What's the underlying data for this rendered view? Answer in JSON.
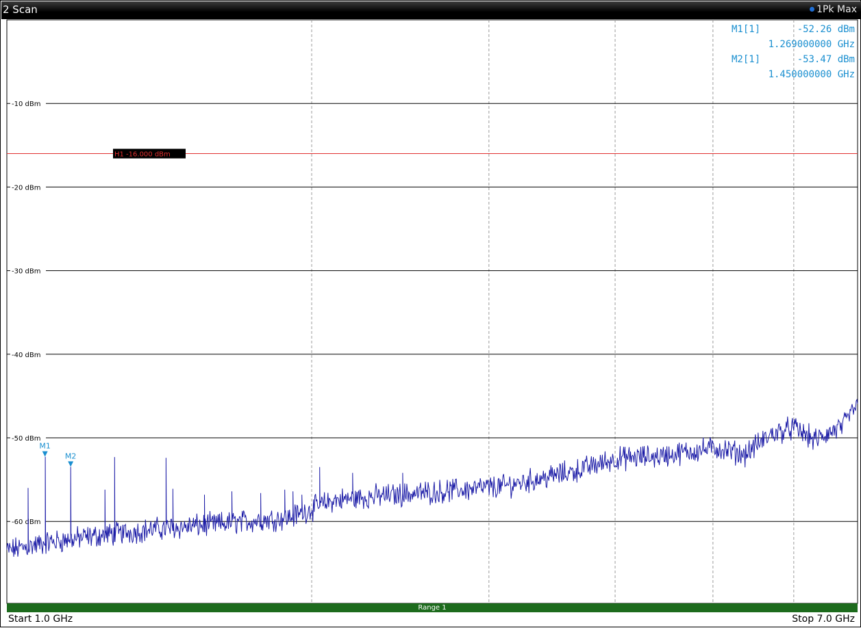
{
  "window": {
    "title": "2 Scan",
    "trace_label": "1Pk Max"
  },
  "markers_table": [
    {
      "name": "M1[1]",
      "level": "-52.26 dBm",
      "freq": "1.269000000 GHz"
    },
    {
      "name": "M2[1]",
      "level": "-53.47 dBm",
      "freq": "1.450000000 GHz"
    }
  ],
  "range_label": "Range 1",
  "start_label": "Start 1.0 GHz",
  "stop_label": "Stop 7.0 GHz",
  "colors": {
    "trace": "#1a1aa6",
    "marker": "#1a8fd0",
    "limit_line": "#e03030",
    "grid": "#000000",
    "range_bar": "#1d6b1d"
  },
  "chart_data": {
    "type": "line",
    "title": "",
    "xlabel": "",
    "ylabel": "",
    "x_unit": "GHz",
    "y_unit": "dBm",
    "xlim": [
      1.0,
      7.0
    ],
    "ylim": [
      -70,
      0
    ],
    "grid": true,
    "y_ticks": [
      {
        "value": -10,
        "label": "-10 dBm"
      },
      {
        "value": -20,
        "label": "-20 dBm"
      },
      {
        "value": -30,
        "label": "-30 dBm"
      },
      {
        "value": -40,
        "label": "-40 dBm"
      },
      {
        "value": -50,
        "label": "-50 dBm"
      },
      {
        "value": -60,
        "label": "-60 dBm"
      }
    ],
    "x_gridlines_ghz": [
      3.15,
      4.4,
      5.29,
      5.98,
      6.55
    ],
    "threshold_line": {
      "label": "H1 -16.000 dBm",
      "value": -16.0
    },
    "series": [
      {
        "values_baseline": [
          [
            1.0,
            -63.5
          ],
          [
            1.3,
            -62.5
          ],
          [
            1.6,
            -61.8
          ],
          [
            2.0,
            -61.0
          ],
          [
            2.5,
            -60.3
          ],
          [
            3.0,
            -59.5
          ],
          [
            3.3,
            -57.5
          ],
          [
            3.6,
            -57.0
          ],
          [
            4.0,
            -56.5
          ],
          [
            4.5,
            -55.8
          ],
          [
            5.0,
            -54.0
          ],
          [
            5.3,
            -52.5
          ],
          [
            5.6,
            -52.2
          ],
          [
            6.0,
            -51.2
          ],
          [
            6.2,
            -52.0
          ],
          [
            6.4,
            -49.5
          ],
          [
            6.55,
            -48.8
          ],
          [
            6.7,
            -50.3
          ],
          [
            6.9,
            -48.6
          ],
          [
            7.0,
            -45.8
          ]
        ],
        "spurs": [
          [
            1.15,
            -56.0
          ],
          [
            1.45,
            -56.5
          ],
          [
            1.69,
            -56.2
          ],
          [
            1.76,
            -52.3
          ],
          [
            2.17,
            -56.1
          ],
          [
            2.12,
            -52.4
          ],
          [
            2.39,
            -56.8
          ],
          [
            2.59,
            -56.4
          ],
          [
            2.79,
            -56.6
          ],
          [
            2.96,
            -56.2
          ],
          [
            3.02,
            -56.4
          ],
          [
            3.08,
            -56.8
          ],
          [
            3.21,
            -53.5
          ],
          [
            3.44,
            -54.2
          ],
          [
            3.79,
            -54.2
          ],
          [
            4.84,
            -54.7
          ]
        ]
      }
    ],
    "markers": [
      {
        "label": "M1",
        "x": 1.269,
        "y": -52.26
      },
      {
        "label": "M2",
        "x": 1.45,
        "y": -53.47
      }
    ]
  }
}
